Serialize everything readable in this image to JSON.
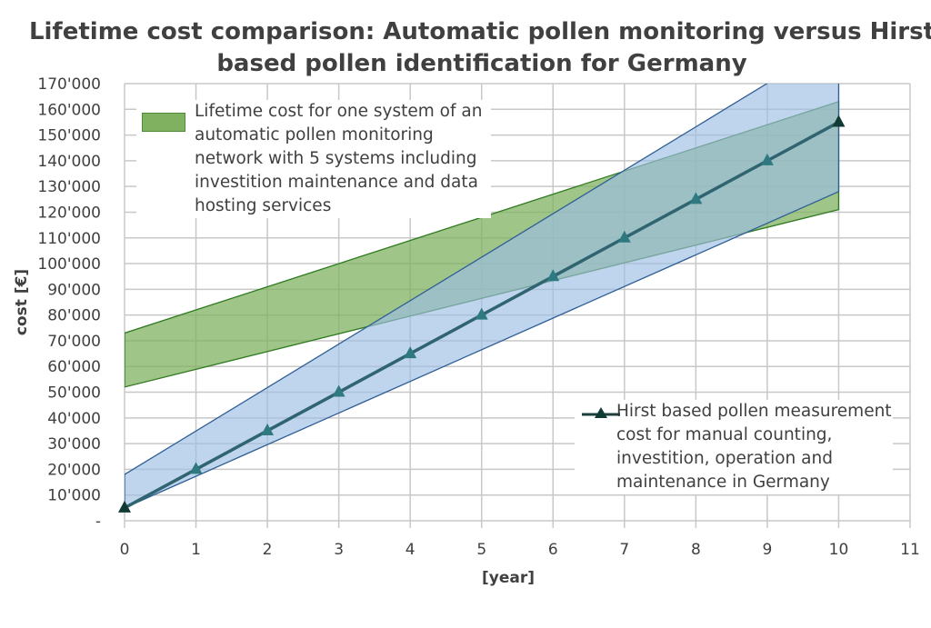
{
  "chart_data": {
    "type": "area",
    "title": "Lifetime cost comparison: Automatic pollen monitoring versus Hirst based pollen identification for Germany",
    "xlabel": "[year]",
    "ylabel": "cost [€]",
    "xlim": [
      0,
      11
    ],
    "ylim": [
      0,
      170000
    ],
    "x_ticks": [
      "0",
      "1",
      "2",
      "3",
      "4",
      "5",
      "6",
      "7",
      "8",
      "9",
      "10",
      "11"
    ],
    "y_ticks": [
      "-",
      "10'000",
      "20'000",
      "30'000",
      "40'000",
      "50'000",
      "60'000",
      "70'000",
      "80'000",
      "90'000",
      "100'000",
      "110'000",
      "120'000",
      "130'000",
      "140'000",
      "150'000",
      "160'000",
      "170'000"
    ],
    "grid": true,
    "series": [
      {
        "name": "Lifetime cost for one system of an automatic pollen monitoring network with 5 systems including investition maintenance and data hosting services",
        "kind": "band",
        "color": "#7fb161",
        "x": [
          0,
          10
        ],
        "lower": [
          52000,
          121000
        ],
        "upper": [
          73000,
          163000
        ]
      },
      {
        "kind": "band",
        "color": "#9dbde3",
        "x": [
          0,
          10
        ],
        "lower": [
          5000,
          128000
        ],
        "upper": [
          18000,
          187000
        ]
      },
      {
        "name": "Hirst based pollen measurement cost for manual counting, investition, operation and maintenance in Germany",
        "kind": "line",
        "color": "#2f6470",
        "x": [
          0,
          1,
          2,
          3,
          4,
          5,
          6,
          7,
          8,
          9,
          10
        ],
        "y": [
          5000,
          20000,
          35000,
          50000,
          65000,
          80000,
          95000,
          110000,
          125000,
          140000,
          155000
        ]
      }
    ],
    "legend_green": "Lifetime cost for one system of an automatic pollen monitoring network with 5 systems including investition maintenance and data hosting services",
    "legend_line": "Hirst based pollen measurement cost for manual counting, investition, operation and maintenance in Germany"
  }
}
